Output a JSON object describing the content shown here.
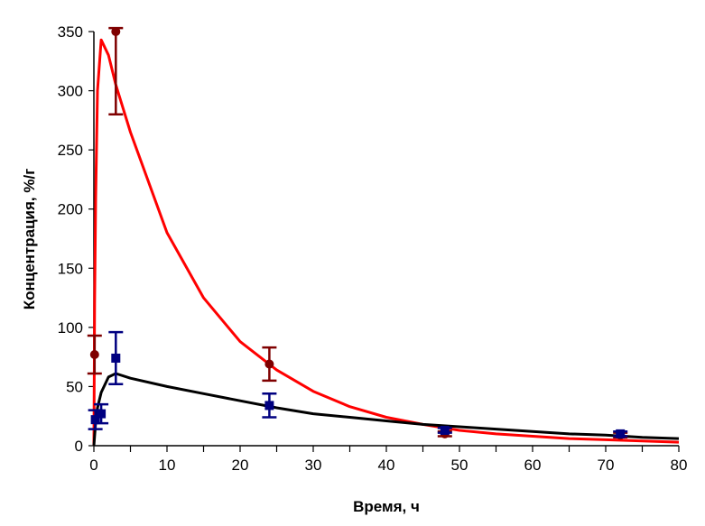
{
  "chart_data": {
    "type": "scatter",
    "title": "",
    "xlabel": "Время, ч",
    "ylabel": "Концентрация, %/г",
    "xlim": [
      0,
      80
    ],
    "ylim": [
      0,
      350
    ],
    "xticks": [
      0,
      10,
      20,
      30,
      40,
      50,
      60,
      70,
      80
    ],
    "yticks": [
      0,
      50,
      100,
      150,
      200,
      250,
      300,
      350
    ],
    "grid": false,
    "legend": "none",
    "series": [
      {
        "kind": "points",
        "color": "#7f0000",
        "marker": "circle",
        "x": [
          0.1,
          3,
          24,
          48,
          72
        ],
        "y": [
          77,
          350,
          69,
          10,
          9
        ],
        "err": [
          16,
          70,
          14,
          2,
          2
        ]
      },
      {
        "kind": "points",
        "color": "#000080",
        "marker": "square",
        "x": [
          0.2,
          1,
          3,
          24,
          48,
          72
        ],
        "y": [
          22,
          27,
          74,
          34,
          13,
          10
        ],
        "err": [
          8,
          8,
          22,
          10,
          2,
          2
        ]
      },
      {
        "kind": "line",
        "color": "#ff0000",
        "x": [
          0,
          0.1,
          0.25,
          0.5,
          1,
          2,
          3,
          5,
          10,
          15,
          20,
          25,
          30,
          35,
          40,
          45,
          50,
          55,
          60,
          65,
          70,
          75,
          80
        ],
        "y": [
          0,
          120,
          210,
          300,
          343,
          330,
          305,
          265,
          180,
          125,
          88,
          64,
          46,
          33,
          24,
          18,
          13,
          10,
          8,
          6,
          5,
          4,
          3
        ]
      },
      {
        "kind": "line",
        "color": "#000000",
        "x": [
          0,
          0.25,
          0.5,
          1,
          2,
          3,
          5,
          10,
          15,
          20,
          25,
          30,
          35,
          40,
          45,
          50,
          55,
          60,
          65,
          70,
          75,
          80
        ],
        "y": [
          0,
          20,
          32,
          45,
          58,
          61,
          57,
          50,
          44,
          38,
          32,
          27,
          24,
          21,
          18,
          16,
          14,
          12,
          10,
          9,
          7,
          6
        ]
      }
    ]
  }
}
